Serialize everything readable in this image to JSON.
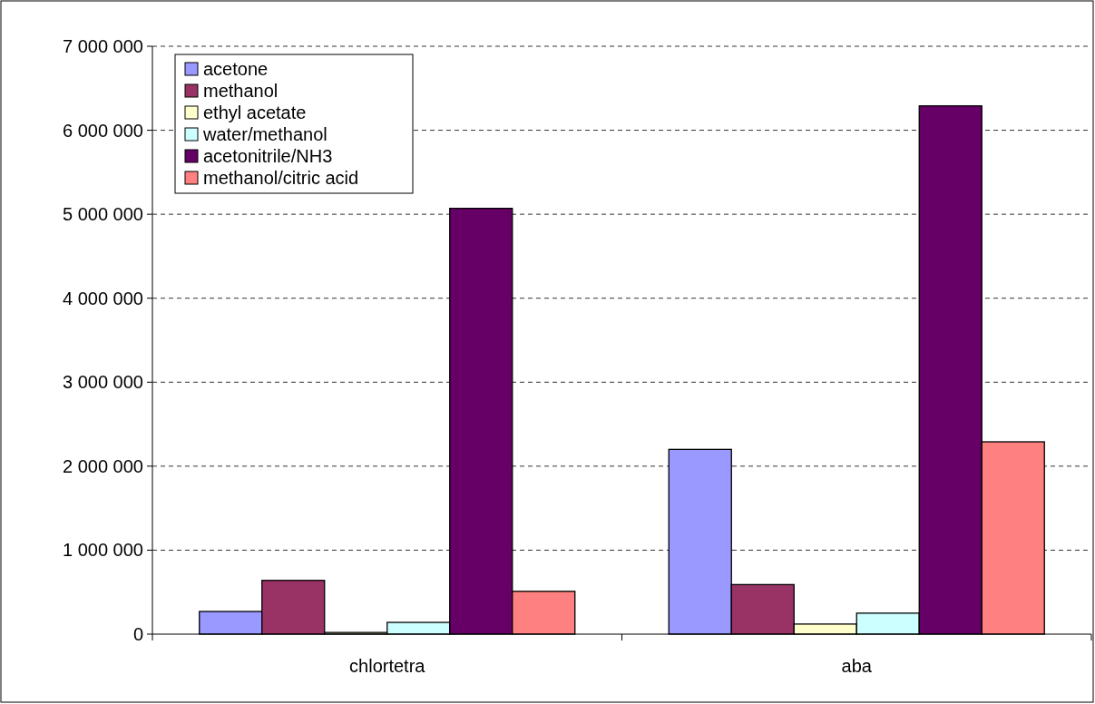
{
  "chart_data": {
    "type": "bar",
    "categories": [
      "chlortetra",
      "aba"
    ],
    "series": [
      {
        "name": "acetone",
        "color": "#9999ff",
        "values": [
          270000,
          2200000
        ]
      },
      {
        "name": "methanol",
        "color": "#993366",
        "values": [
          640000,
          590000
        ]
      },
      {
        "name": "ethyl acetate",
        "color": "#ffffcc",
        "values": [
          20000,
          120000
        ]
      },
      {
        "name": "water/methanol",
        "color": "#ccffff",
        "values": [
          140000,
          250000
        ]
      },
      {
        "name": "acetonitrile/NH3",
        "color": "#660066",
        "values": [
          5070000,
          6290000
        ]
      },
      {
        "name": "methanol/citric acid",
        "color": "#ff8080",
        "values": [
          510000,
          2290000
        ]
      }
    ],
    "ylim": [
      0,
      7000000
    ],
    "yticks": [
      0,
      {
        "value": 1000000,
        "label": "1 000 000"
      },
      {
        "value": 2000000,
        "label": "2 000 000"
      },
      {
        "value": 3000000,
        "label": "3 000 000"
      },
      {
        "value": 4000000,
        "label": "4 000 000"
      },
      {
        "value": 5000000,
        "label": "5 000 000"
      },
      {
        "value": 6000000,
        "label": "6 000 000"
      },
      {
        "value": 7000000,
        "label": "7 000 000"
      }
    ],
    "grid": "y",
    "legend": "top left"
  }
}
